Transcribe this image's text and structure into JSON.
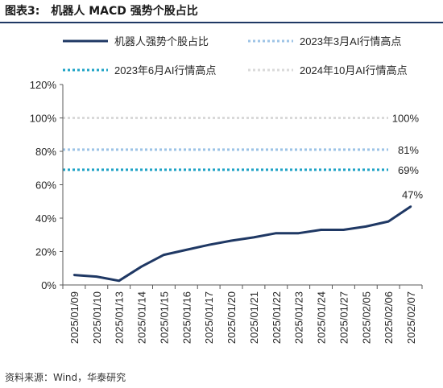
{
  "figure": {
    "label": "图表3:",
    "title": "机器人 MACD 强势个股占比",
    "source": "资料来源：Wind，华泰研究"
  },
  "colors": {
    "series": "#1f3864",
    "ref_mar2023": "#9dc3e6",
    "ref_jun2023": "#1ea3c6",
    "ref_oct2024": "#d9d9d9",
    "title_rule": "#1f3864"
  },
  "chart_data": {
    "type": "line",
    "title": "",
    "xlabel": "",
    "ylabel": "",
    "ylim": [
      0,
      120
    ],
    "yticks": [
      "0%",
      "20%",
      "40%",
      "60%",
      "80%",
      "100%",
      "120%"
    ],
    "ytick_values": [
      0,
      20,
      40,
      60,
      80,
      100,
      120
    ],
    "grid": false,
    "legend_position": "top",
    "x": [
      "2025/01/09",
      "2025/01/10",
      "2025/01/13",
      "2025/01/14",
      "2025/01/15",
      "2025/01/16",
      "2025/01/17",
      "2025/01/20",
      "2025/01/21",
      "2025/01/22",
      "2025/01/23",
      "2025/01/24",
      "2025/01/27",
      "2025/02/05",
      "2025/02/06",
      "2025/02/07"
    ],
    "series": [
      {
        "name": "机器人强势个股占比",
        "style": "solid",
        "values": [
          6,
          5,
          2.5,
          11,
          18,
          21,
          24,
          26.5,
          28.5,
          31,
          31,
          33,
          33,
          35,
          38,
          47
        ],
        "end_label": "47%"
      }
    ],
    "reference_lines": [
      {
        "name": "2023年3月AI行情高点",
        "value": 81,
        "label": "81%",
        "style": "dotted"
      },
      {
        "name": "2023年6月AI行情高点",
        "value": 69,
        "label": "69%",
        "style": "dotted"
      },
      {
        "name": "2024年10月AI行情高点",
        "value": 100,
        "label": "100%",
        "style": "dotted"
      }
    ]
  }
}
